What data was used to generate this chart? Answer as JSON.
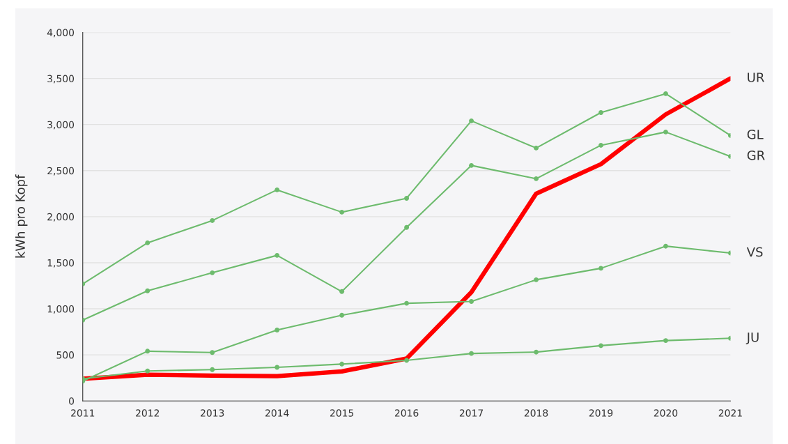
{
  "chart_data": {
    "type": "line",
    "ylabel": "kWh pro Kopf",
    "x": [
      2011,
      2012,
      2013,
      2014,
      2015,
      2016,
      2017,
      2018,
      2019,
      2020,
      2021
    ],
    "series": [
      {
        "name": "GL",
        "color": "#6dbb6d",
        "values": [
          1270,
          1716,
          1958,
          2291,
          2049,
          2200,
          3040,
          2745,
          3130,
          3335,
          2881
        ]
      },
      {
        "name": "GR",
        "color": "#6dbb6d",
        "values": [
          877,
          1195,
          1391,
          1580,
          1187,
          1883,
          2556,
          2412,
          2775,
          2919,
          2654
        ]
      },
      {
        "name": "VS",
        "color": "#6dbb6d",
        "values": [
          215,
          540,
          525,
          770,
          930,
          1060,
          1080,
          1315,
          1440,
          1680,
          1605
        ]
      },
      {
        "name": "JU",
        "color": "#6dbb6d",
        "values": [
          240,
          325,
          340,
          365,
          400,
          440,
          515,
          530,
          600,
          655,
          680
        ]
      },
      {
        "name": "UR",
        "color": "#ff0000",
        "marker": "none",
        "values": [
          240,
          285,
          275,
          270,
          320,
          460,
          1180,
          2250,
          2570,
          3110,
          3500
        ]
      }
    ],
    "marker": "circle",
    "grid": "y",
    "legend": false,
    "xlim": [
      2011,
      2021
    ],
    "xticks": [
      2011,
      2012,
      2013,
      2014,
      2015,
      2016,
      2017,
      2018,
      2019,
      2020,
      2021
    ],
    "ylim": [
      0,
      4000
    ],
    "yticks": [
      0,
      500,
      {
        "value": 1000,
        "label": "1,000"
      },
      {
        "value": 1500,
        "label": "1,500"
      },
      {
        "value": 2000,
        "label": "2,000"
      },
      {
        "value": 2500,
        "label": "2,500"
      },
      {
        "value": 3000,
        "label": "3,000"
      },
      {
        "value": 3500,
        "label": "3,500"
      },
      {
        "value": 4000,
        "label": "4,000"
      }
    ]
  }
}
